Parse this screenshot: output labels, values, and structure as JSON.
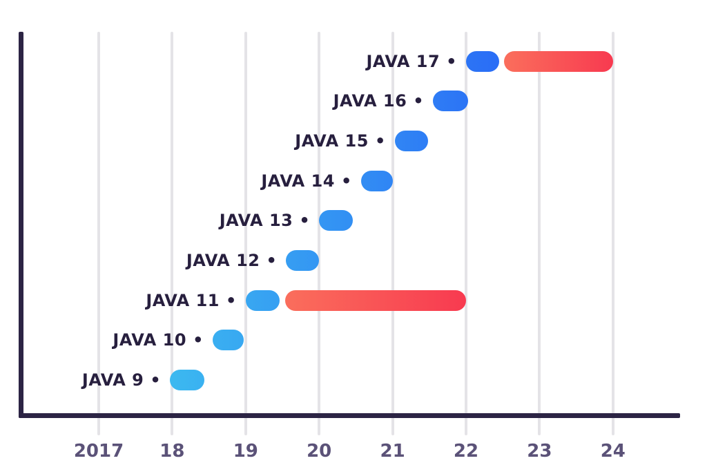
{
  "chart_data": {
    "type": "bar",
    "variant": "horizontal-gantt-timeline",
    "title": "",
    "xlabel": "",
    "ylabel": "",
    "grid": "vertical-gridlines-on",
    "legend": "none",
    "marker": "•",
    "x_axis": {
      "ticks": [
        {
          "label": "2017",
          "year": 2017
        },
        {
          "label": "18",
          "year": 2018
        },
        {
          "label": "19",
          "year": 2019
        },
        {
          "label": "20",
          "year": 2020
        },
        {
          "label": "21",
          "year": 2021
        },
        {
          "label": "22",
          "year": 2022
        },
        {
          "label": "23",
          "year": 2023
        },
        {
          "label": "24",
          "year": 2024
        }
      ],
      "visible_range_years": [
        2015.9,
        2024.9
      ]
    },
    "rows": [
      {
        "label": "JAVA 17",
        "bars": [
          {
            "kind": "support",
            "role": "blue",
            "start": 2022.0,
            "end": 2022.45
          },
          {
            "kind": "extended-support",
            "role": "red",
            "start": 2022.52,
            "end": 2024.0
          }
        ]
      },
      {
        "label": "JAVA 16",
        "bars": [
          {
            "kind": "support",
            "role": "blue",
            "start": 2021.55,
            "end": 2022.03
          }
        ]
      },
      {
        "label": "JAVA 15",
        "bars": [
          {
            "kind": "support",
            "role": "blue",
            "start": 2021.03,
            "end": 2021.48
          }
        ]
      },
      {
        "label": "JAVA 14",
        "bars": [
          {
            "kind": "support",
            "role": "blue",
            "start": 2020.57,
            "end": 2021.0
          }
        ]
      },
      {
        "label": "JAVA 13",
        "bars": [
          {
            "kind": "support",
            "role": "blue",
            "start": 2020.0,
            "end": 2020.46
          }
        ]
      },
      {
        "label": "JAVA 12",
        "bars": [
          {
            "kind": "support",
            "role": "blue",
            "start": 2019.55,
            "end": 2020.0
          }
        ]
      },
      {
        "label": "JAVA 11",
        "bars": [
          {
            "kind": "support",
            "role": "blue",
            "start": 2019.0,
            "end": 2019.46
          },
          {
            "kind": "extended-support",
            "role": "red",
            "start": 2019.54,
            "end": 2022.0
          }
        ]
      },
      {
        "label": "JAVA 10",
        "bars": [
          {
            "kind": "support",
            "role": "blue",
            "start": 2018.55,
            "end": 2018.97
          }
        ]
      },
      {
        "label": "JAVA 9",
        "bars": [
          {
            "kind": "support",
            "role": "blue",
            "start": 2017.97,
            "end": 2018.44
          }
        ]
      }
    ]
  },
  "colors": {
    "background": "#ffffff",
    "axis": "#2c2444",
    "row_label": "#271f3e",
    "tick_label": "#5b5278",
    "gridline": "#e4e3e7",
    "blue_gradient": {
      "anchor_start_year": 2017.95,
      "anchor_start_color": "#3cb9f0",
      "anchor_end_year": 2022.5,
      "anchor_end_color": "#2a6cf6"
    },
    "red_gradient": {
      "start_color": "#fa6e5c",
      "end_color": "#f83a50"
    }
  }
}
